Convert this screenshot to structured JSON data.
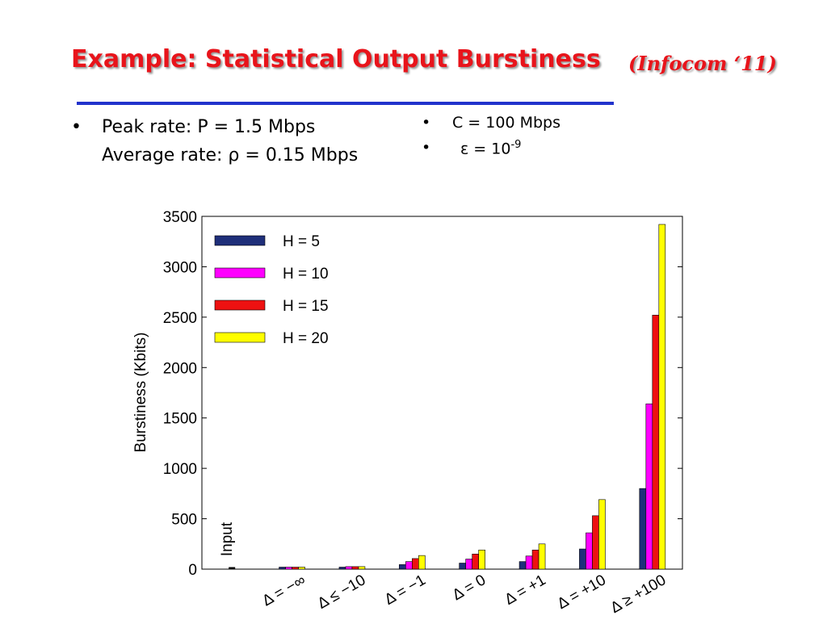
{
  "slide": {
    "title": "Example: Statistical Output Burstiness",
    "subtitle": "(Infocom ‘11)",
    "left_bullets": [
      "Peak rate: P = 1.5 Mbps",
      "Average rate: ρ = 0.15 Mbps"
    ],
    "right_bullets": [
      {
        "text": "C = 100 Mbps"
      },
      {
        "text": "ε = 10",
        "superscript": "-9"
      }
    ]
  },
  "chart_data": {
    "type": "bar",
    "ylabel": "Burstiness (Kbits)",
    "categories": [
      "Δ = −∞",
      "Δ ≤ −10",
      "Δ = −1",
      "Δ = 0",
      "Δ = +1",
      "Δ = +10",
      "Δ ≥ +100"
    ],
    "annotation": {
      "text": "Input",
      "value": 20
    },
    "series": [
      {
        "name": "H = 5",
        "color": "#1f2f7a",
        "values": [
          20,
          20,
          45,
          60,
          75,
          200,
          800
        ]
      },
      {
        "name": "H = 10",
        "color": "#ff00ff",
        "values": [
          20,
          25,
          75,
          100,
          130,
          360,
          1640
        ]
      },
      {
        "name": "H = 15",
        "color": "#ee1111",
        "values": [
          20,
          25,
          105,
          150,
          190,
          530,
          2520
        ]
      },
      {
        "name": "H = 20",
        "color": "#ffff00",
        "values": [
          20,
          25,
          135,
          190,
          250,
          690,
          3420
        ]
      }
    ],
    "ylim": [
      0,
      3500
    ],
    "yticks": [
      0,
      500,
      1000,
      1500,
      2000,
      2500,
      3000,
      3500
    ],
    "legend": "upper left"
  }
}
